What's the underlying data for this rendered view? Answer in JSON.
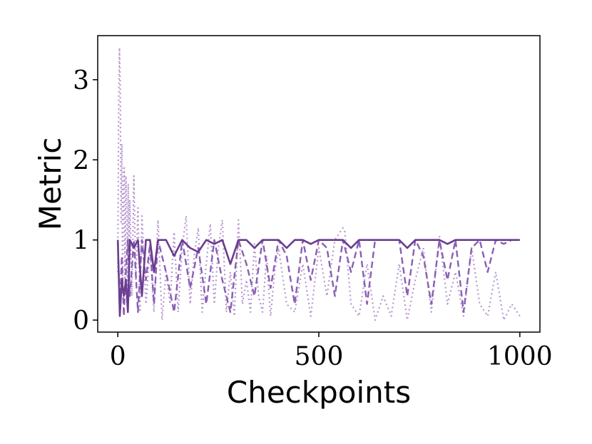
{
  "chart_data": {
    "type": "line",
    "title": "",
    "xlabel": "Checkpoints",
    "ylabel": "Metric",
    "xlim": [
      -50,
      1050
    ],
    "ylim": [
      -0.15,
      3.55
    ],
    "x_ticks": [
      0,
      500,
      1000
    ],
    "y_ticks": [
      0,
      1,
      2,
      3
    ],
    "x_tick_labels": [
      "0",
      "500",
      "1000"
    ],
    "y_tick_labels": [
      "0",
      "1",
      "2",
      "3"
    ],
    "grid": false,
    "legend": "none",
    "series": [
      {
        "style": "dotted",
        "color": "#b797cf",
        "x": [
          0,
          2,
          4,
          6,
          8,
          10,
          12,
          14,
          16,
          18,
          20,
          22,
          24,
          26,
          28,
          30,
          35,
          40,
          45,
          50,
          55,
          60,
          70,
          80,
          90,
          100,
          110,
          120,
          130,
          140,
          150,
          160,
          170,
          180,
          190,
          200,
          210,
          220,
          230,
          240,
          250,
          260,
          270,
          280,
          290,
          300,
          310,
          320,
          330,
          340,
          350,
          360,
          370,
          380,
          390,
          400,
          420,
          440,
          460,
          480,
          500,
          520,
          540,
          560,
          565,
          580,
          600,
          620,
          640,
          660,
          680,
          700,
          720,
          740,
          760,
          780,
          800,
          820,
          840,
          860,
          880,
          900,
          920,
          940,
          960,
          980,
          1000
        ],
        "y": [
          0.6,
          2.6,
          3.4,
          2.9,
          1.2,
          2.2,
          0.4,
          1.6,
          1.9,
          0.5,
          1.8,
          1.4,
          0.2,
          1.7,
          0.6,
          1.5,
          0.3,
          1.8,
          0.5,
          1.4,
          0.1,
          1.3,
          0.2,
          0.9,
          0.1,
          1.25,
          0.0,
          0.6,
          0.2,
          1.1,
          0.1,
          0.9,
          1.3,
          0.2,
          0.8,
          1.15,
          0.1,
          0.7,
          1.2,
          0.2,
          0.9,
          1.25,
          0.1,
          0.6,
          0.05,
          1.25,
          0.2,
          0.5,
          0.1,
          0.95,
          0.3,
          0.1,
          0.8,
          0.05,
          0.6,
          0.9,
          0.2,
          0.1,
          0.7,
          0.05,
          0.9,
          0.3,
          1.0,
          1.15,
          1.1,
          0.2,
          0.05,
          0.7,
          0.0,
          0.3,
          0.05,
          0.7,
          0.0,
          0.5,
          0.9,
          0.1,
          1.05,
          0.2,
          0.6,
          0.05,
          0.9,
          0.2,
          0.05,
          0.6,
          0.0,
          0.2,
          0.05
        ]
      },
      {
        "style": "dashed",
        "color": "#8a5fb3",
        "x": [
          0,
          5,
          10,
          15,
          20,
          25,
          30,
          40,
          50,
          60,
          70,
          80,
          90,
          100,
          120,
          140,
          160,
          180,
          200,
          220,
          240,
          260,
          280,
          300,
          320,
          340,
          360,
          380,
          400,
          420,
          440,
          460,
          480,
          500,
          520,
          540,
          560,
          580,
          600,
          620,
          640,
          660,
          680,
          700,
          720,
          740,
          760,
          780,
          800,
          820,
          840,
          860,
          880,
          900,
          920,
          940,
          960,
          980,
          1000
        ],
        "y": [
          1.0,
          0.1,
          0.8,
          0.05,
          0.6,
          1.0,
          0.3,
          1.0,
          0.1,
          1.0,
          0.5,
          0.95,
          0.2,
          1.0,
          0.6,
          0.1,
          1.0,
          0.4,
          0.9,
          0.2,
          1.0,
          0.5,
          0.1,
          1.0,
          0.7,
          0.3,
          1.0,
          0.4,
          1.0,
          0.8,
          0.2,
          1.0,
          0.5,
          1.0,
          0.9,
          0.3,
          1.0,
          0.6,
          1.0,
          0.2,
          1.0,
          1.0,
          1.0,
          1.0,
          0.3,
          1.0,
          0.8,
          0.2,
          1.0,
          0.5,
          1.0,
          0.1,
          0.9,
          1.0,
          0.6,
          1.0,
          0.95,
          1.0,
          1.0
        ]
      },
      {
        "style": "solid",
        "color": "#6a3d8f",
        "x": [
          0,
          5,
          10,
          15,
          20,
          25,
          30,
          40,
          50,
          60,
          70,
          80,
          90,
          100,
          120,
          140,
          160,
          180,
          200,
          220,
          240,
          260,
          280,
          300,
          320,
          340,
          360,
          380,
          400,
          420,
          440,
          460,
          480,
          500,
          520,
          540,
          560,
          580,
          600,
          620,
          640,
          660,
          680,
          700,
          720,
          740,
          760,
          780,
          800,
          820,
          840,
          860,
          880,
          900,
          920,
          940,
          960,
          980,
          1000
        ],
        "y": [
          1.0,
          0.05,
          0.5,
          0.3,
          0.5,
          0.1,
          1.0,
          0.9,
          1.0,
          0.3,
          1.0,
          1.0,
          0.6,
          1.0,
          1.0,
          0.8,
          1.0,
          0.9,
          0.85,
          1.0,
          0.95,
          1.0,
          0.7,
          1.0,
          1.0,
          0.9,
          1.0,
          1.0,
          1.0,
          0.9,
          1.0,
          1.0,
          0.95,
          1.0,
          1.0,
          1.0,
          1.0,
          0.9,
          1.0,
          1.0,
          1.0,
          1.0,
          1.0,
          1.0,
          0.9,
          1.0,
          1.0,
          1.0,
          1.0,
          0.95,
          1.0,
          1.0,
          1.0,
          1.0,
          1.0,
          1.0,
          1.0,
          1.0,
          1.0
        ]
      }
    ]
  }
}
